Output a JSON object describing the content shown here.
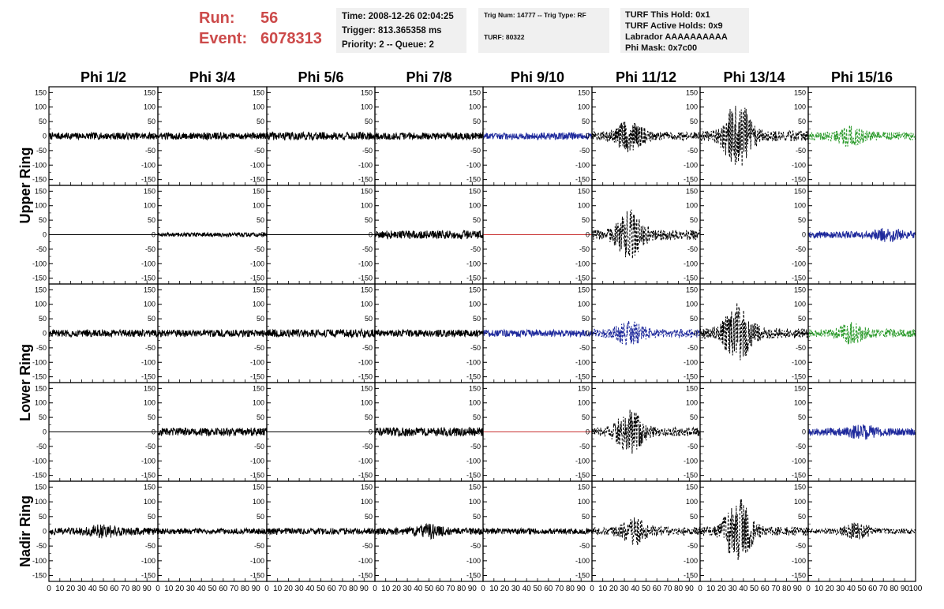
{
  "header": {
    "run_label": "Run:",
    "run_value": "56",
    "event_label": "Event:",
    "event_value": "6078313",
    "colors": {
      "run_text": "#cc4a4a"
    }
  },
  "info_boxes": {
    "box1": [
      "Time: 2008-12-26 02:04:25",
      "Trigger: 813.365358 ms",
      "Priority: 2 -- Queue: 2"
    ],
    "box2": [
      "Trig Num: 14777 -- Trig Type: RF",
      "TURF: 80322"
    ],
    "box3": [
      "TURF This Hold: 0x1",
      "TURF Active Holds: 0x9",
      "Labrador AAAAAAAAAA",
      "Phi Mask: 0x7c00"
    ]
  },
  "chart_data": {
    "type": "line",
    "column_labels": [
      "Phi 1/2",
      "Phi 3/4",
      "Phi 5/6",
      "Phi 7/8",
      "Phi 9/10",
      "Phi 11/12",
      "Phi 13/14",
      "Phi 15/16"
    ],
    "ring_labels": [
      "Upper Ring",
      "Lower Ring",
      "Nadir Ring"
    ],
    "ylim": [
      -170,
      170
    ],
    "xlim": [
      0,
      100
    ],
    "y_ticks": [
      -150,
      -100,
      -50,
      0,
      50,
      100,
      150
    ],
    "x_ticks": [
      0,
      10,
      20,
      30,
      40,
      50,
      60,
      70,
      80,
      90,
      100
    ],
    "x_tick_labels": [
      "0",
      "10",
      "20",
      "30",
      "40",
      "50",
      "60",
      "70",
      "80",
      "90",
      "100"
    ],
    "colors": {
      "black": "#000000",
      "blue": "#1f2a9c",
      "green": "#2a9a2a",
      "red": "#c83232"
    },
    "waveform_samples": 300,
    "panels": [
      [
        {
          "style": "solid",
          "color": "black",
          "amp": 12,
          "burst": 0
        },
        {
          "style": "solid",
          "color": "black",
          "amp": 12,
          "burst": 0
        },
        {
          "style": "solid",
          "color": "black",
          "amp": 14,
          "burst": 0
        },
        {
          "style": "solid",
          "color": "black",
          "amp": 12,
          "burst": 0
        },
        {
          "style": "solid",
          "color": "blue",
          "amp": 12,
          "burst": 0
        },
        {
          "style": "dashed",
          "color": "black",
          "amp": 15,
          "burst": 45,
          "center": 35
        },
        {
          "style": "dashed",
          "color": "black",
          "amp": 18,
          "burst": 110,
          "center": 35
        },
        {
          "style": "dashed",
          "color": "green",
          "amp": 14,
          "burst": 25,
          "center": 40
        }
      ],
      [
        {
          "style": "flat",
          "color": "black"
        },
        {
          "style": "solid",
          "color": "black",
          "amp": 7,
          "burst": 0
        },
        {
          "style": "flat",
          "color": "black"
        },
        {
          "style": "solid",
          "color": "black",
          "amp": 14,
          "burst": 0
        },
        {
          "style": "flat",
          "color": "red"
        },
        {
          "style": "dashed",
          "color": "black",
          "amp": 18,
          "burst": 70,
          "center": 35
        },
        {
          "style": "empty"
        },
        {
          "style": "solid",
          "color": "blue",
          "amp": 12,
          "burst": 15,
          "center": 75
        }
      ],
      [
        {
          "style": "solid",
          "color": "black",
          "amp": 12,
          "burst": 0
        },
        {
          "style": "solid",
          "color": "black",
          "amp": 12,
          "burst": 0
        },
        {
          "style": "solid",
          "color": "black",
          "amp": 14,
          "burst": 0
        },
        {
          "style": "solid",
          "color": "black",
          "amp": 12,
          "burst": 0
        },
        {
          "style": "solid",
          "color": "blue",
          "amp": 12,
          "burst": 0
        },
        {
          "style": "dashed",
          "color": "blue",
          "amp": 15,
          "burst": 30,
          "center": 35
        },
        {
          "style": "dashed",
          "color": "black",
          "amp": 18,
          "burst": 95,
          "center": 35
        },
        {
          "style": "dashed",
          "color": "green",
          "amp": 14,
          "burst": 25,
          "center": 40
        }
      ],
      [
        {
          "style": "flat",
          "color": "black"
        },
        {
          "style": "solid",
          "color": "black",
          "amp": 14,
          "burst": 0
        },
        {
          "style": "flat",
          "color": "black"
        },
        {
          "style": "solid",
          "color": "black",
          "amp": 15,
          "burst": 0
        },
        {
          "style": "flat",
          "color": "red"
        },
        {
          "style": "dashed",
          "color": "black",
          "amp": 15,
          "burst": 65,
          "center": 35
        },
        {
          "style": "empty"
        },
        {
          "style": "solid",
          "color": "blue",
          "amp": 13,
          "burst": 15,
          "center": 50
        }
      ],
      [
        {
          "style": "solid",
          "color": "black",
          "amp": 12,
          "burst": 15,
          "center": 50
        },
        {
          "style": "solid",
          "color": "black",
          "amp": 10,
          "burst": 0
        },
        {
          "style": "solid",
          "color": "black",
          "amp": 11,
          "burst": 0
        },
        {
          "style": "solid",
          "color": "black",
          "amp": 12,
          "burst": 15,
          "center": 50
        },
        {
          "style": "solid",
          "color": "black",
          "amp": 10,
          "burst": 0
        },
        {
          "style": "dashed",
          "color": "black",
          "amp": 14,
          "burst": 35,
          "center": 40
        },
        {
          "style": "dashed",
          "color": "black",
          "amp": 15,
          "burst": 100,
          "center": 35
        },
        {
          "style": "dashed",
          "color": "black",
          "amp": 10,
          "burst": 20,
          "center": 45
        }
      ]
    ]
  }
}
